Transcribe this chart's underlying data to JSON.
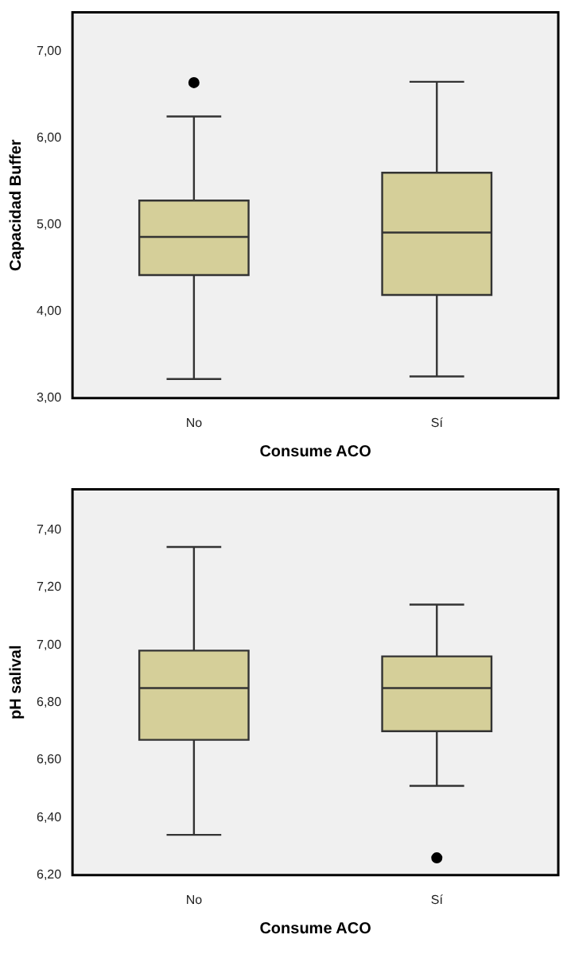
{
  "chart_data": [
    {
      "type": "box",
      "categories": [
        "No",
        "Sí"
      ],
      "xlabel": "Consume ACO",
      "ylabel": "Capacidad Buffer",
      "color": "#d5cf99",
      "boxes": [
        {
          "low": 3.22,
          "q1": 4.42,
          "median": 4.86,
          "q3": 5.28,
          "high": 6.25,
          "outliers": [
            6.64
          ]
        },
        {
          "low": 3.25,
          "q1": 4.19,
          "median": 4.91,
          "q3": 5.6,
          "high": 6.65
        }
      ],
      "ylim": [
        3,
        7.45
      ],
      "yticks": [
        {
          "value": 3,
          "label": "3,00"
        },
        {
          "value": 4,
          "label": "4,00"
        },
        {
          "value": 5,
          "label": "5,00"
        },
        {
          "value": 6,
          "label": "6,00"
        },
        {
          "value": 7,
          "label": "7,00"
        }
      ],
      "grid": false,
      "legend": false
    },
    {
      "type": "box",
      "categories": [
        "No",
        "Sí"
      ],
      "xlabel": "Consume ACO",
      "ylabel": "pH salival",
      "color": "#d5cf99",
      "boxes": [
        {
          "low": 6.34,
          "q1": 6.67,
          "median": 6.85,
          "q3": 6.98,
          "high": 7.34
        },
        {
          "low": 6.51,
          "q1": 6.7,
          "median": 6.85,
          "q3": 6.96,
          "high": 7.14,
          "outliers": [
            6.26
          ]
        }
      ],
      "ylim": [
        6.2,
        7.54
      ],
      "yticks": [
        {
          "value": 6.2,
          "label": "6,20"
        },
        {
          "value": 6.4,
          "label": "6,40"
        },
        {
          "value": 6.6,
          "label": "6,60"
        },
        {
          "value": 6.8,
          "label": "6,80"
        },
        {
          "value": 7,
          "label": "7,00"
        },
        {
          "value": 7.2,
          "label": "7,20"
        },
        {
          "value": 7.4,
          "label": "7,40"
        }
      ],
      "grid": false,
      "legend": false
    }
  ]
}
